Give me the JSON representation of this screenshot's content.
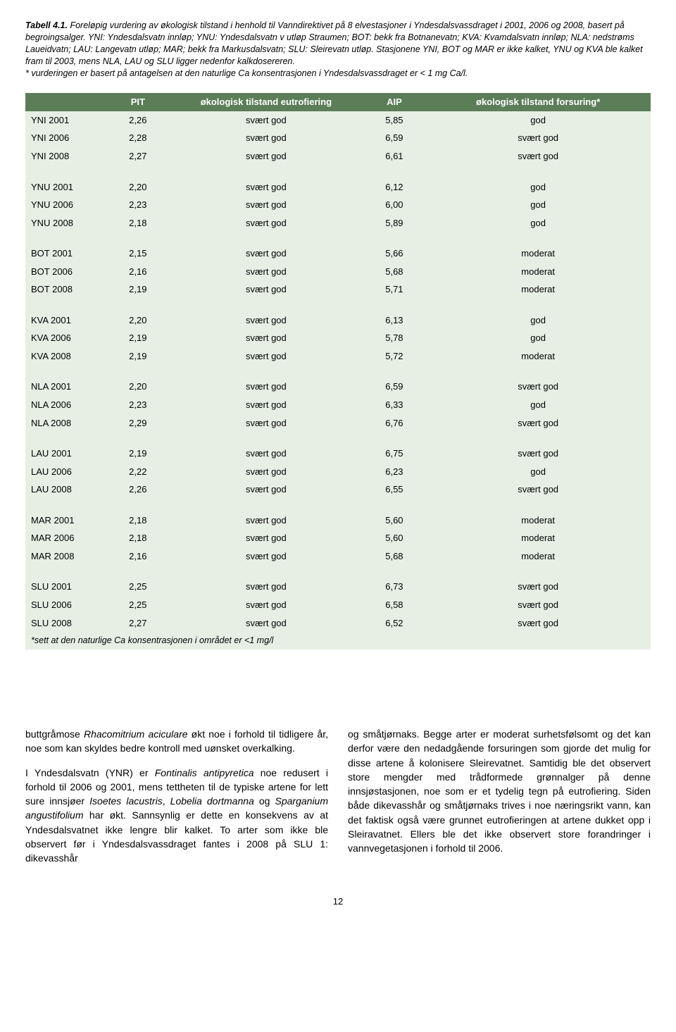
{
  "caption": {
    "label": "Tabell 4.1.",
    "text1": " Foreløpig vurdering av økologisk tilstand i henhold til Vanndirektivet på 8 elvestasjoner i Yndesdalsvassdraget i 2001, 2006 og 2008, basert på begroingsalger. YNI: Yndesdalsvatn innløp; YNU: Yndesdalsvatn v utløp Straumen; BOT: bekk fra Botnanevatn; KVA: Kvamdalsvatn innløp; NLA: nedstrøms Laueidvatn; LAU: Langevatn utløp; MAR; bekk fra Markusdalsvatn; SLU: Sleirevatn utløp. Stasjonene YNI, BOT og MAR er ikke kalket, YNU og KVA ble kalket fram til 2003, mens NLA, LAU og SLU ligger nedenfor kalkdosereren.",
    "text2": "* vurderingen er basert på antagelsen at den naturlige Ca konsentrasjonen i Yndesdalsvassdraget er < 1 mg Ca/l."
  },
  "headers": {
    "h1": "",
    "h2": "PIT",
    "h3": "økologisk tilstand eutrofiering",
    "h4": "AIP",
    "h5": "økologisk tilstand forsuring*"
  },
  "groups": [
    [
      {
        "s": "YNI 2001",
        "pit": "2,26",
        "eu": "svært god",
        "aip": "5,85",
        "fo": "god"
      },
      {
        "s": "YNI 2006",
        "pit": "2,28",
        "eu": "svært god",
        "aip": "6,59",
        "fo": "svært god"
      },
      {
        "s": "YNI 2008",
        "pit": "2,27",
        "eu": "svært god",
        "aip": "6,61",
        "fo": "svært god"
      }
    ],
    [
      {
        "s": "YNU 2001",
        "pit": "2,20",
        "eu": "svært god",
        "aip": "6,12",
        "fo": "god"
      },
      {
        "s": "YNU 2006",
        "pit": "2,23",
        "eu": "svært god",
        "aip": "6,00",
        "fo": "god"
      },
      {
        "s": "YNU 2008",
        "pit": "2,18",
        "eu": "svært god",
        "aip": "5,89",
        "fo": "god"
      }
    ],
    [
      {
        "s": "BOT 2001",
        "pit": "2,15",
        "eu": "svært god",
        "aip": "5,66",
        "fo": "moderat"
      },
      {
        "s": "BOT 2006",
        "pit": "2,16",
        "eu": "svært god",
        "aip": "5,68",
        "fo": "moderat"
      },
      {
        "s": "BOT 2008",
        "pit": "2,19",
        "eu": "svært god",
        "aip": "5,71",
        "fo": "moderat"
      }
    ],
    [
      {
        "s": "KVA 2001",
        "pit": "2,20",
        "eu": "svært god",
        "aip": "6,13",
        "fo": "god"
      },
      {
        "s": "KVA 2006",
        "pit": "2,19",
        "eu": "svært god",
        "aip": "5,78",
        "fo": "god"
      },
      {
        "s": "KVA 2008",
        "pit": "2,19",
        "eu": "svært god",
        "aip": "5,72",
        "fo": "moderat"
      }
    ],
    [
      {
        "s": "NLA 2001",
        "pit": "2,20",
        "eu": "svært god",
        "aip": "6,59",
        "fo": "svært god"
      },
      {
        "s": "NLA 2006",
        "pit": "2,23",
        "eu": "svært god",
        "aip": "6,33",
        "fo": "god"
      },
      {
        "s": "NLA 2008",
        "pit": "2,29",
        "eu": "svært god",
        "aip": "6,76",
        "fo": "svært god"
      }
    ],
    [
      {
        "s": "LAU 2001",
        "pit": "2,19",
        "eu": "svært god",
        "aip": "6,75",
        "fo": "svært god"
      },
      {
        "s": "LAU 2006",
        "pit": "2,22",
        "eu": "svært god",
        "aip": "6,23",
        "fo": "god"
      },
      {
        "s": "LAU 2008",
        "pit": "2,26",
        "eu": "svært god",
        "aip": "6,55",
        "fo": "svært god"
      }
    ],
    [
      {
        "s": "MAR 2001",
        "pit": "2,18",
        "eu": "svært god",
        "aip": "5,60",
        "fo": "moderat"
      },
      {
        "s": "MAR 2006",
        "pit": "2,18",
        "eu": "svært god",
        "aip": "5,60",
        "fo": "moderat"
      },
      {
        "s": "MAR 2008",
        "pit": "2,16",
        "eu": "svært god",
        "aip": "5,68",
        "fo": "moderat"
      }
    ],
    [
      {
        "s": "SLU 2001",
        "pit": "2,25",
        "eu": "svært god",
        "aip": "6,73",
        "fo": "svært god"
      },
      {
        "s": "SLU 2006",
        "pit": "2,25",
        "eu": "svært god",
        "aip": "6,58",
        "fo": "svært god"
      },
      {
        "s": "SLU 2008",
        "pit": "2,27",
        "eu": "svært god",
        "aip": "6,52",
        "fo": "svært god"
      }
    ]
  ],
  "footnote": "*sett at den naturlige Ca konsentrasjonen i området er <1 mg/l",
  "body": {
    "left": {
      "p1a": "buttgråmose ",
      "p1i": "Rhacomitrium aciculare",
      "p1b": " økt noe i forhold til tidligere år, noe som kan skyldes bedre kontroll med uønsket overkalking.",
      "p2a": "I Yndesdalsvatn (YNR) er ",
      "p2i1": "Fontinalis antipyretica",
      "p2b": " noe redusert i forhold til 2006 og 2001, mens tettheten til de typiske artene for lett sure innsjøer ",
      "p2i2": "Isoetes lacustris",
      "p2c": ", ",
      "p2i3": "Lobelia dortmanna",
      "p2d": " og ",
      "p2i4": "Sparganium angustifolium",
      "p2e": " har økt. Sannsynlig er dette en konsekvens av at Yndesdalsvatnet ikke lengre blir kalket. To arter som ikke ble observert før i Yndesdalsvassdraget fantes i 2008 på SLU 1: dikevasshår"
    },
    "right": {
      "p1": "og småtjørnaks. Begge arter er moderat surhetsfølsomt og det kan derfor være den nedadgående forsuringen som gjorde det mulig for disse artene å kolonisere Sleirevatnet. Samtidig ble det observert store mengder med trådformede grønnalger på denne innsjøstasjonen, noe som er et tydelig tegn på eutrofiering. Siden både dikevasshår og småtjørnaks trives i noe næringsrikt vann, kan det faktisk også være grunnet eutrofieringen at artene dukket opp i Sleiravatnet. Ellers ble det ikke observert store foran­dringer i vannvegetasjonen i forhold til 2006."
    }
  },
  "pagenum": "12",
  "style": {
    "header_bg": "#5b7e59",
    "header_fg": "#ffffff",
    "cell_bg": "#e7efe4",
    "page_bg": "#ffffff",
    "text_color": "#000000",
    "body_font_size_pt": 10,
    "caption_font_size_pt": 9,
    "table_font_size_pt": 10
  }
}
